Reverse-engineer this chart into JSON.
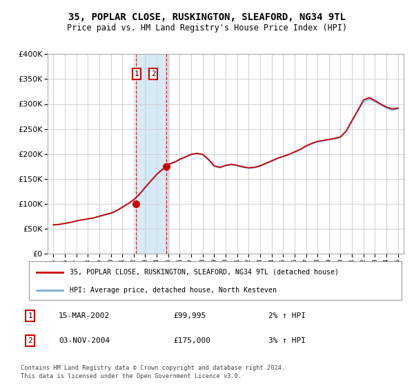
{
  "title": "35, POPLAR CLOSE, RUSKINGTON, SLEAFORD, NG34 9TL",
  "subtitle": "Price paid vs. HM Land Registry's House Price Index (HPI)",
  "legend_line1": "35, POPLAR CLOSE, RUSKINGTON, SLEAFORD, NG34 9TL (detached house)",
  "legend_line2": "HPI: Average price, detached house, North Kesteven",
  "sale1_date": "15-MAR-2002",
  "sale1_price": 99995,
  "sale1_hpi": "2% ↑ HPI",
  "sale1_year": 2002.2,
  "sale2_date": "03-NOV-2004",
  "sale2_price": 175000,
  "sale2_hpi": "3% ↑ HPI",
  "sale2_year": 2004.85,
  "footer": "Contains HM Land Registry data © Crown copyright and database right 2024.\nThis data is licensed under the Open Government Licence v3.0.",
  "ylim": [
    0,
    400000
  ],
  "xlim_start": 1994.5,
  "xlim_end": 2025.5,
  "line_color_red": "#cc0000",
  "line_color_blue": "#7aacda",
  "highlight_color": "#d6eaf8",
  "background_color": "#ffffff",
  "grid_color": "#d0d0d0",
  "highlight_x1": 2002.2,
  "highlight_x2": 2005.1
}
